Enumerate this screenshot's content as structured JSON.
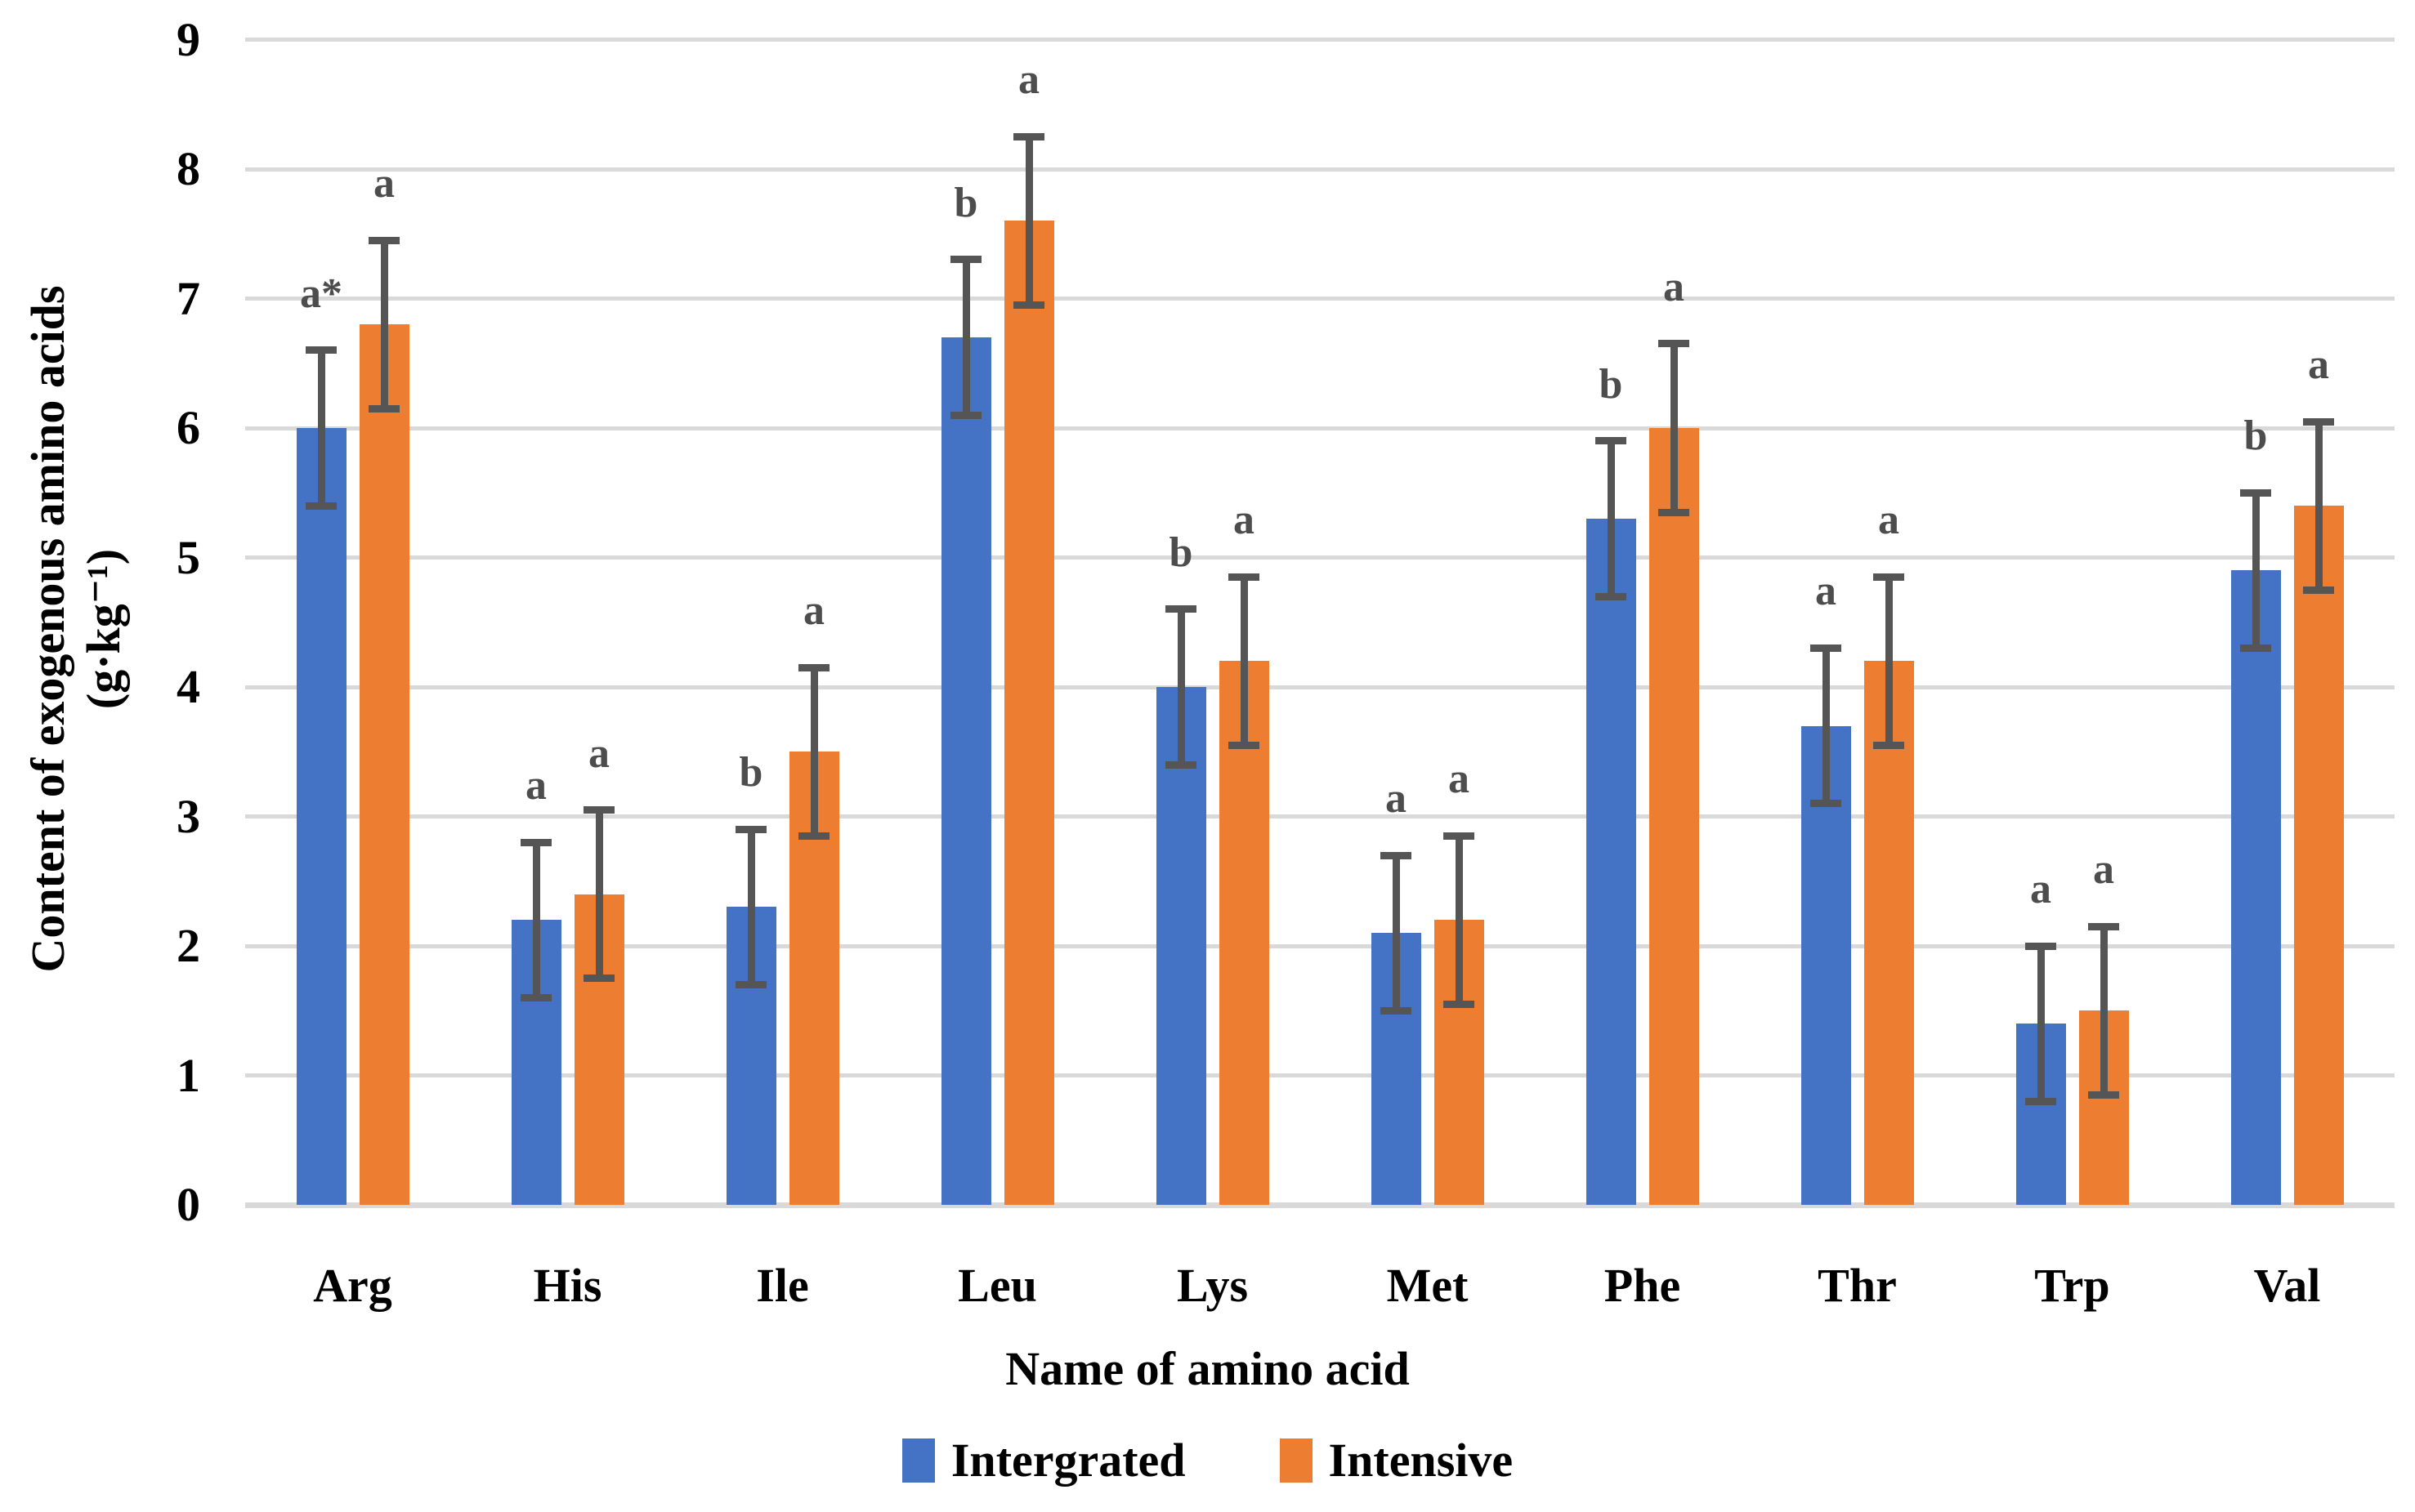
{
  "chart_data": {
    "type": "bar",
    "title": "",
    "categories": [
      "Arg",
      "His",
      "Ile",
      "Leu",
      "Lys",
      "Met",
      "Phe",
      "Thr",
      "Trp",
      "Val"
    ],
    "series": [
      {
        "name": "Intergrated",
        "color": "#4472C4",
        "values": [
          6.0,
          2.2,
          2.3,
          6.7,
          4.0,
          2.1,
          5.3,
          3.7,
          1.4,
          4.9
        ],
        "error_bar": 0.6,
        "sig_labels": [
          "a*",
          "a",
          "b",
          "b",
          "b",
          "a",
          "b",
          "a",
          "a",
          "b"
        ]
      },
      {
        "name": "Intensive",
        "color": "#ED7D31",
        "values": [
          6.8,
          2.4,
          3.5,
          7.6,
          4.2,
          2.2,
          6.0,
          4.2,
          1.5,
          5.4
        ],
        "error_bar": 0.65,
        "sig_labels": [
          "a",
          "a",
          "a",
          "a",
          "a",
          "a",
          "a",
          "a",
          "a",
          "a"
        ]
      }
    ],
    "xlabel": "Name of amino acid",
    "ylabel": "Content of exogenous amino acids",
    "ylabel_unit": "(g·kg⁻¹)",
    "ylim": [
      0,
      9
    ],
    "ytick_step": 1,
    "y_tick_labels": [
      "0",
      "1",
      "2",
      "3",
      "4",
      "5",
      "6",
      "7",
      "8",
      "9"
    ],
    "grid": true,
    "legend_position": "bottom",
    "colors": {
      "gridline": "#D9D9D9",
      "axis_line": "#D9D9D9",
      "error_bar": "#555555",
      "sig_label": "#4d4d4d",
      "text": "#000000"
    }
  }
}
